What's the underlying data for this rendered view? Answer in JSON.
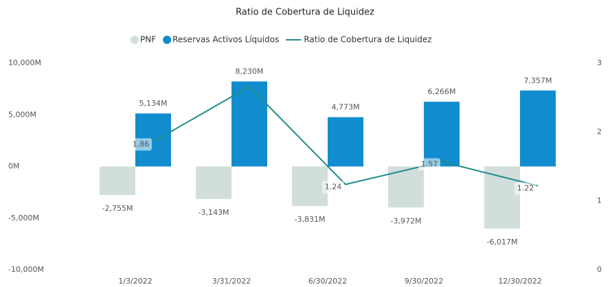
{
  "chart_data": {
    "type": "bar-line",
    "title": "Ratio de Cobertura de Liquidez",
    "categories": [
      "1/3/2022",
      "3/31/2022",
      "6/30/2022",
      "9/30/2022",
      "12/30/2022"
    ],
    "series": [
      {
        "name": "PNF",
        "color": "#d2dedc",
        "type": "bar",
        "values": [
          -2755,
          -3143,
          -3831,
          -3972,
          -6017
        ],
        "value_labels": [
          "-2,755M",
          "-3,143M",
          "-3,831M",
          "-3,972M",
          "-6,017M"
        ]
      },
      {
        "name": "Reservas Activos Líquidos",
        "color": "#118dcf",
        "type": "bar",
        "values": [
          5134,
          8230,
          4773,
          6266,
          7357
        ],
        "value_labels": [
          "5,134M",
          "8,230M",
          "4,773M",
          "6,266M",
          "7,357M"
        ]
      },
      {
        "name": "Ratio de Cobertura de Liquidez",
        "color": "#1f8b8b",
        "type": "line",
        "axis": "y2",
        "values": [
          1.86,
          2.66,
          1.24,
          1.57,
          1.22
        ],
        "value_labels": [
          "1.86",
          null,
          "1.24",
          "1.57",
          "1.22"
        ]
      }
    ],
    "ylim": [
      -10000,
      10000
    ],
    "yticks": [
      {
        "value": -10000,
        "label": "-10,000M"
      },
      {
        "value": -5000,
        "label": "-5,000M"
      },
      {
        "value": 0,
        "label": "0M"
      },
      {
        "value": 5000,
        "label": "5,000M"
      },
      {
        "value": 10000,
        "label": "10,000M"
      }
    ],
    "y2lim": [
      0,
      3
    ],
    "y2ticks": [
      0,
      1,
      2,
      3
    ]
  }
}
